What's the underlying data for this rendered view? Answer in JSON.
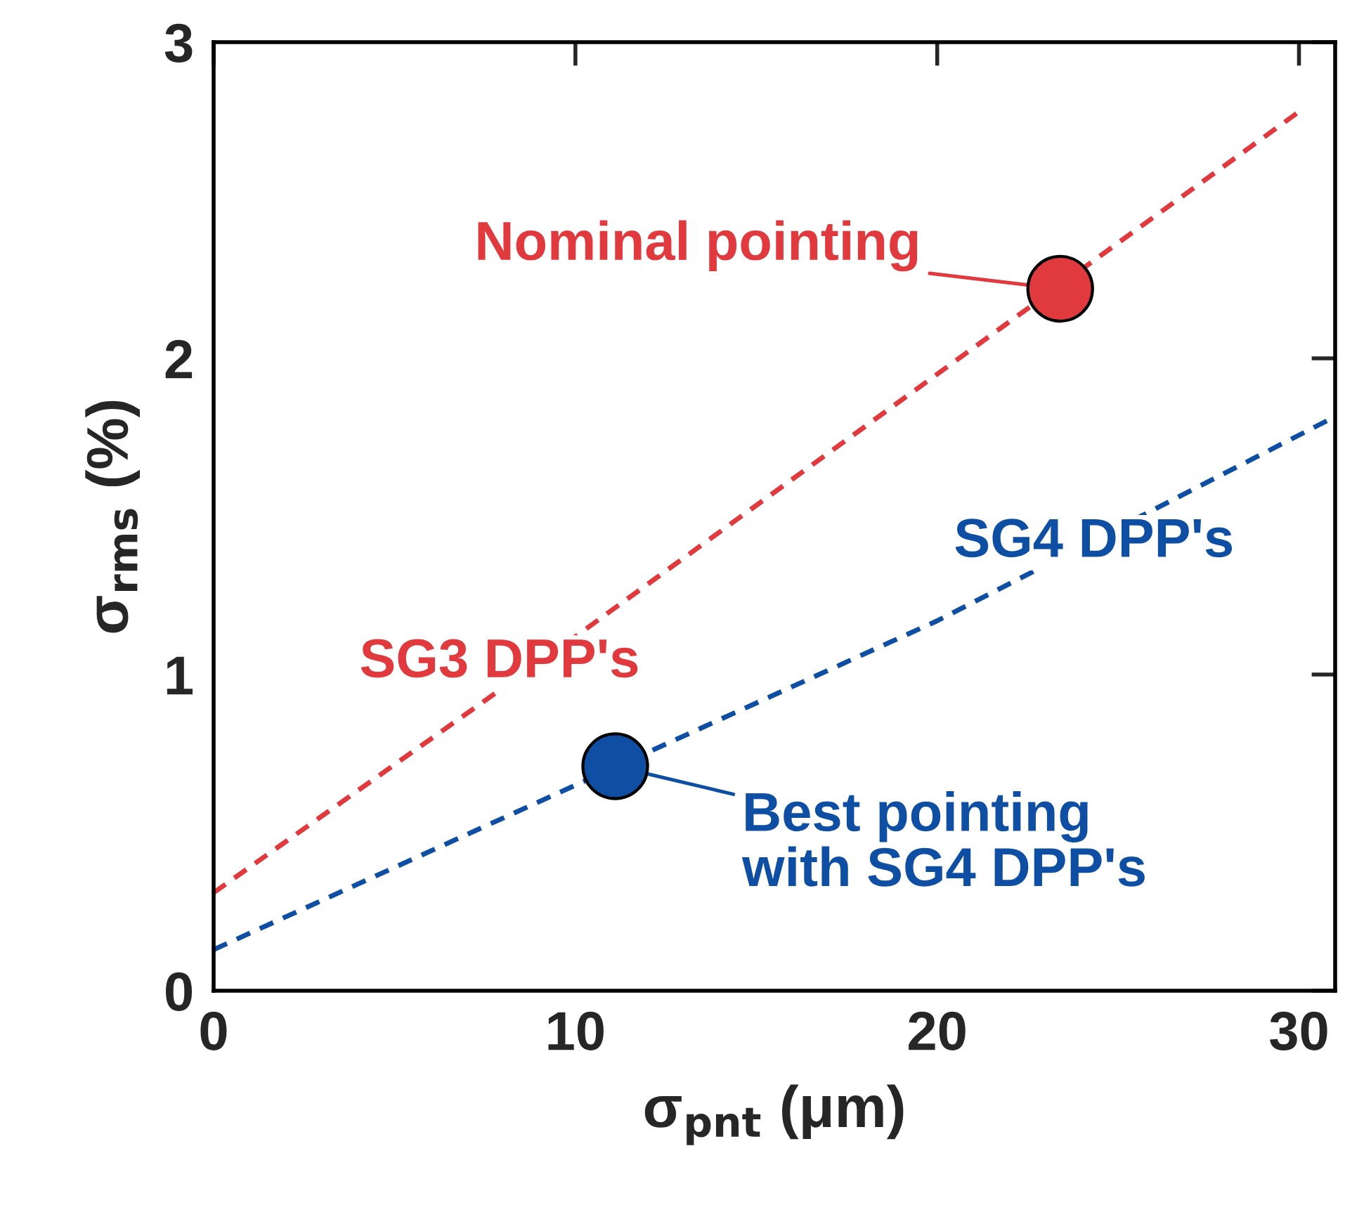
{
  "chart_data": {
    "type": "line",
    "xlabel": "σ$_{pnt}$ (μm)",
    "ylabel": "σ$_{rms}$ (%)",
    "xlim": [
      0,
      31
    ],
    "ylim": [
      0,
      3
    ],
    "xticks": [
      0,
      10,
      20,
      30
    ],
    "yticks": [
      0,
      1,
      2,
      3
    ],
    "grid": false,
    "legend": false,
    "line_style": "dashed",
    "series": [
      {
        "name": "SG3 DPP's",
        "color": "#e03a3e",
        "x": [
          0,
          10,
          20,
          30
        ],
        "values": [
          0.31,
          1.12,
          1.95,
          2.78
        ]
      },
      {
        "name": "SG4 DPP's",
        "color": "#0f4fa3",
        "x": [
          0,
          10,
          20,
          30.9
        ],
        "values": [
          0.13,
          0.65,
          1.17,
          1.81
        ]
      },
      {
        "color": "#e03a3e",
        "type": "scatter",
        "marker": "circle",
        "x": [
          23.4
        ],
        "values": [
          2.22
        ]
      },
      {
        "color": "#0f4fa3",
        "type": "scatter",
        "marker": "circle",
        "x": [
          11.1
        ],
        "values": [
          0.71
        ]
      }
    ],
    "annotations": [
      {
        "text": "Nominal pointing",
        "x": 23.4,
        "y": 2.22
      },
      {
        "text": "Best pointing\nwith SG4 DPP's",
        "x": 11.1,
        "y": 0.71
      }
    ]
  }
}
